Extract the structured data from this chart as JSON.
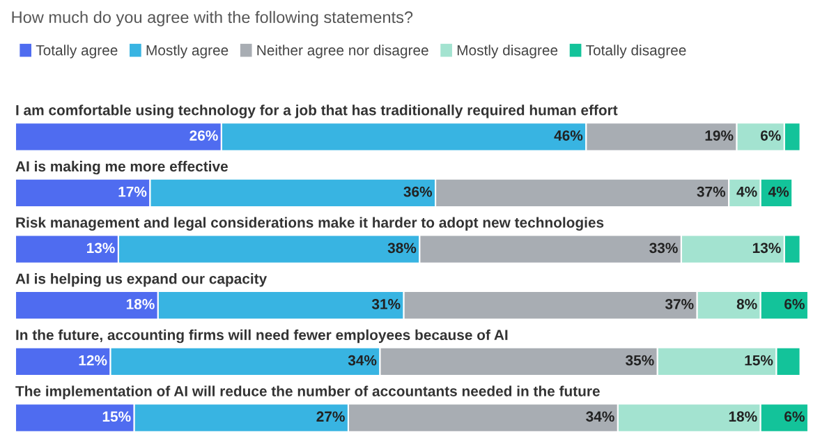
{
  "chart_data": {
    "type": "bar",
    "orientation": "horizontal",
    "stacked": true,
    "title": "How much do you agree with the following statements?",
    "categories": [
      "I am comfortable using technology for a job that has traditionally required human effort",
      "AI is making me more effective",
      "Risk management and legal considerations make it harder to adopt new technologies",
      "AI is helping us expand our capacity",
      "In the future, accounting firms will need fewer employees because of AI",
      "The implementation of AI will reduce the number of accountants needed in the future"
    ],
    "series": [
      {
        "name": "Totally agree",
        "color": "#4f6cf0",
        "values": [
          26,
          17,
          13,
          18,
          12,
          15
        ],
        "value_labels": [
          "26%",
          "17%",
          "13%",
          "18%",
          "12%",
          "15%"
        ]
      },
      {
        "name": "Mostly agree",
        "color": "#38b4e2",
        "values": [
          46,
          36,
          38,
          31,
          34,
          27
        ],
        "value_labels": [
          "46%",
          "36%",
          "38%",
          "31%",
          "34%",
          "27%"
        ]
      },
      {
        "name": "Neither agree nor disagree",
        "color": "#a8adb3",
        "values": [
          19,
          37,
          33,
          37,
          35,
          34
        ],
        "value_labels": [
          "19%",
          "37%",
          "33%",
          "37%",
          "35%",
          "34%"
        ]
      },
      {
        "name": "Mostly disagree",
        "color": "#a3e3d0",
        "values": [
          6,
          4,
          13,
          8,
          15,
          18
        ],
        "value_labels": [
          "6%",
          "4%",
          "13%",
          "8%",
          "15%",
          "18%"
        ]
      },
      {
        "name": "Totally disagree",
        "color": "#13c39a",
        "values": [
          2,
          4,
          2,
          6,
          3,
          6
        ],
        "value_labels": [
          null,
          "4%",
          null,
          "6%",
          null,
          "6%"
        ]
      }
    ],
    "legend": "top left"
  }
}
